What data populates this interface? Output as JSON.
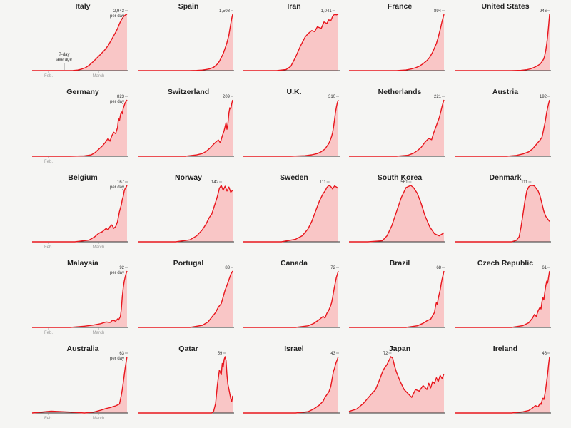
{
  "chart_data": [
    {
      "type": "area",
      "title": "Italy",
      "peak_label": "2,943",
      "unit_label": "per day",
      "annotation": "7-day average",
      "x_labels": [
        "Feb.",
        "March"
      ],
      "x": [
        0,
        15,
        30,
        38,
        43,
        48,
        52,
        56,
        60,
        64,
        68,
        72,
        76,
        80,
        84,
        88,
        90,
        92,
        94,
        96,
        98,
        100
      ],
      "values": [
        0,
        0,
        0,
        0,
        8,
        30,
        80,
        150,
        280,
        450,
        650,
        850,
        1050,
        1300,
        1650,
        2000,
        2200,
        2450,
        2650,
        2800,
        2900,
        2943
      ]
    },
    {
      "type": "area",
      "title": "Spain",
      "peak_label": "1,508",
      "x_labels": [],
      "x": [
        0,
        40,
        55,
        62,
        68,
        72,
        76,
        80,
        84,
        86,
        88,
        90,
        92,
        94,
        96,
        97,
        98,
        99,
        100
      ],
      "values": [
        0,
        0,
        0,
        5,
        15,
        30,
        50,
        90,
        180,
        250,
        350,
        450,
        600,
        750,
        950,
        1100,
        1250,
        1400,
        1508
      ]
    },
    {
      "type": "area",
      "title": "Iran",
      "peak_label": "1,041",
      "x_labels": [],
      "x": [
        0,
        35,
        45,
        50,
        55,
        60,
        65,
        68,
        72,
        75,
        78,
        82,
        85,
        88,
        90,
        92,
        94,
        96,
        98,
        100
      ],
      "values": [
        0,
        0,
        20,
        80,
        250,
        450,
        620,
        680,
        740,
        720,
        810,
        780,
        900,
        870,
        940,
        920,
        1000,
        1041,
        1030,
        1041
      ]
    },
    {
      "type": "area",
      "title": "France",
      "peak_label": "894",
      "x_labels": [],
      "x": [
        0,
        50,
        60,
        65,
        70,
        74,
        78,
        82,
        85,
        88,
        90,
        92,
        94,
        96,
        98,
        100
      ],
      "values": [
        0,
        0,
        10,
        25,
        45,
        70,
        110,
        160,
        210,
        290,
        360,
        430,
        530,
        650,
        780,
        894
      ]
    },
    {
      "type": "area",
      "title": "United States",
      "peak_label": "946",
      "x_labels": [],
      "x": [
        0,
        60,
        70,
        76,
        80,
        84,
        87,
        90,
        92,
        94,
        95,
        96,
        97,
        98,
        99,
        100
      ],
      "values": [
        0,
        0,
        5,
        15,
        30,
        55,
        80,
        110,
        150,
        200,
        260,
        340,
        450,
        580,
        760,
        946
      ]
    },
    {
      "type": "area",
      "title": "Germany",
      "peak_label": "823",
      "unit_label": "per day",
      "x_labels": [
        "Feb."
      ],
      "x": [
        0,
        40,
        55,
        62,
        66,
        70,
        74,
        77,
        80,
        82,
        84,
        86,
        88,
        90,
        91,
        92,
        93,
        94,
        95,
        96,
        97,
        98,
        99,
        100
      ],
      "values": [
        0,
        0,
        5,
        20,
        50,
        100,
        150,
        200,
        260,
        220,
        300,
        350,
        330,
        420,
        550,
        520,
        600,
        650,
        620,
        700,
        740,
        780,
        800,
        823
      ]
    },
    {
      "type": "area",
      "title": "Switzerland",
      "peak_label": "209",
      "x_labels": [],
      "x": [
        0,
        50,
        62,
        68,
        72,
        76,
        80,
        83,
        85,
        87,
        89,
        91,
        92,
        93,
        94,
        95,
        96,
        97,
        98,
        99,
        100
      ],
      "values": [
        0,
        0,
        5,
        10,
        18,
        30,
        45,
        55,
        60,
        50,
        75,
        95,
        110,
        125,
        100,
        120,
        160,
        180,
        175,
        195,
        209
      ]
    },
    {
      "type": "area",
      "title": "U.K.",
      "peak_label": "310",
      "x_labels": [],
      "x": [
        0,
        50,
        65,
        72,
        78,
        82,
        86,
        88,
        90,
        92,
        93,
        94,
        95,
        96,
        97,
        98,
        99,
        100
      ],
      "values": [
        0,
        0,
        3,
        8,
        15,
        25,
        40,
        55,
        70,
        95,
        110,
        130,
        160,
        200,
        240,
        270,
        295,
        310
      ]
    },
    {
      "type": "area",
      "title": "Netherlands",
      "peak_label": "221",
      "x_labels": [],
      "x": [
        0,
        50,
        62,
        68,
        72,
        76,
        80,
        84,
        87,
        89,
        91,
        93,
        95,
        96,
        97,
        98,
        99,
        100
      ],
      "values": [
        0,
        0,
        4,
        12,
        22,
        35,
        55,
        70,
        65,
        90,
        110,
        130,
        150,
        165,
        180,
        195,
        210,
        221
      ]
    },
    {
      "type": "area",
      "title": "Austria",
      "peak_label": "192",
      "x_labels": [],
      "x": [
        0,
        55,
        65,
        72,
        78,
        82,
        86,
        88,
        90,
        92,
        93,
        94,
        95,
        96,
        97,
        98,
        99,
        100
      ],
      "values": [
        0,
        0,
        3,
        8,
        15,
        25,
        40,
        48,
        55,
        65,
        80,
        95,
        110,
        130,
        150,
        165,
        180,
        192
      ]
    },
    {
      "type": "area",
      "title": "Belgium",
      "peak_label": "167",
      "unit_label": "per day",
      "x_labels": [
        "Feb.",
        "March"
      ],
      "x": [
        0,
        45,
        60,
        66,
        70,
        74,
        78,
        80,
        82,
        84,
        86,
        88,
        90,
        91,
        92,
        93,
        94,
        95,
        96,
        97,
        98,
        99,
        100
      ],
      "values": [
        0,
        0,
        5,
        15,
        25,
        30,
        40,
        35,
        45,
        50,
        40,
        45,
        60,
        75,
        90,
        100,
        110,
        125,
        135,
        150,
        158,
        162,
        167
      ]
    },
    {
      "type": "area",
      "title": "Norway",
      "peak_label": "142",
      "x_labels": [],
      "x": [
        0,
        40,
        55,
        62,
        68,
        72,
        75,
        78,
        80,
        82,
        84,
        86,
        88,
        90,
        92,
        94,
        96,
        98,
        100
      ],
      "values": [
        0,
        0,
        5,
        15,
        30,
        45,
        60,
        70,
        85,
        100,
        115,
        135,
        142,
        130,
        140,
        128,
        138,
        125,
        130
      ]
    },
    {
      "type": "area",
      "title": "Sweden",
      "peak_label": "111",
      "x_labels": [],
      "x": [
        0,
        40,
        55,
        62,
        68,
        72,
        76,
        80,
        84,
        86,
        88,
        90,
        92,
        94,
        96,
        98,
        100
      ],
      "values": [
        0,
        0,
        5,
        12,
        25,
        40,
        60,
        80,
        95,
        100,
        107,
        111,
        109,
        104,
        110,
        108,
        105
      ]
    },
    {
      "type": "area",
      "title": "South Korea",
      "peak_label": "561",
      "x_labels": [],
      "x": [
        0,
        20,
        35,
        40,
        45,
        50,
        55,
        60,
        65,
        68,
        72,
        76,
        80,
        85,
        90,
        95,
        100
      ],
      "values": [
        0,
        0,
        10,
        60,
        160,
        300,
        440,
        540,
        561,
        540,
        480,
        380,
        260,
        150,
        80,
        60,
        90
      ]
    },
    {
      "type": "area",
      "title": "Denmark",
      "peak_label": "111",
      "x_labels": [],
      "x": [
        0,
        50,
        60,
        65,
        68,
        70,
        72,
        74,
        76,
        78,
        80,
        82,
        84,
        86,
        88,
        90,
        92,
        94,
        96,
        98,
        100
      ],
      "values": [
        0,
        0,
        0,
        3,
        10,
        30,
        55,
        80,
        100,
        108,
        111,
        111,
        110,
        105,
        100,
        90,
        75,
        60,
        50,
        45,
        40
      ]
    },
    {
      "type": "area",
      "title": "Malaysia",
      "peak_label": "92",
      "unit_label": "per day",
      "x_labels": [
        "Feb.",
        "March"
      ],
      "x": [
        0,
        40,
        55,
        65,
        72,
        78,
        82,
        85,
        88,
        90,
        91,
        92,
        93,
        94,
        95,
        96,
        97,
        98,
        99,
        100
      ],
      "values": [
        0,
        0,
        2,
        4,
        6,
        9,
        8,
        12,
        10,
        14,
        12,
        15,
        18,
        30,
        50,
        65,
        75,
        82,
        88,
        92
      ]
    },
    {
      "type": "area",
      "title": "Portugal",
      "peak_label": "83",
      "x_labels": [],
      "x": [
        0,
        55,
        68,
        74,
        78,
        82,
        85,
        88,
        90,
        92,
        94,
        96,
        98,
        100
      ],
      "values": [
        0,
        0,
        3,
        8,
        15,
        22,
        30,
        35,
        45,
        55,
        62,
        70,
        78,
        83
      ]
    },
    {
      "type": "area",
      "title": "Canada",
      "peak_label": "72",
      "x_labels": [],
      "x": [
        0,
        55,
        68,
        74,
        80,
        84,
        86,
        88,
        90,
        92,
        93,
        94,
        95,
        96,
        97,
        98,
        99,
        100
      ],
      "values": [
        0,
        0,
        2,
        5,
        10,
        14,
        12,
        18,
        22,
        28,
        32,
        38,
        45,
        52,
        58,
        64,
        68,
        72
      ]
    },
    {
      "type": "area",
      "title": "Brazil",
      "peak_label": "68",
      "x_labels": [],
      "x": [
        0,
        60,
        72,
        78,
        82,
        86,
        88,
        90,
        91,
        92,
        93,
        94,
        95,
        96,
        97,
        98,
        99,
        100
      ],
      "values": [
        0,
        0,
        2,
        5,
        8,
        10,
        14,
        18,
        25,
        30,
        28,
        35,
        40,
        45,
        52,
        58,
        63,
        68
      ]
    },
    {
      "type": "area",
      "title": "Czech Republic",
      "peak_label": "61",
      "x_labels": [],
      "x": [
        0,
        60,
        72,
        78,
        82,
        84,
        86,
        88,
        90,
        91,
        92,
        93,
        94,
        95,
        96,
        97,
        98,
        99,
        100
      ],
      "values": [
        0,
        0,
        2,
        5,
        10,
        14,
        12,
        18,
        22,
        20,
        28,
        32,
        30,
        38,
        45,
        50,
        48,
        55,
        61
      ]
    },
    {
      "type": "area",
      "title": "Australia",
      "peak_label": "63",
      "unit_label": "per day",
      "x_labels": [
        "Feb.",
        "March"
      ],
      "x": [
        0,
        20,
        40,
        55,
        65,
        72,
        78,
        82,
        85,
        88,
        90,
        92,
        93,
        94,
        95,
        96,
        97,
        98,
        99,
        100
      ],
      "values": [
        0,
        2,
        1,
        0,
        1,
        3,
        5,
        6,
        7,
        8,
        9,
        10,
        15,
        20,
        26,
        34,
        42,
        50,
        57,
        63
      ]
    },
    {
      "type": "area",
      "title": "Qatar",
      "peak_label": "59",
      "x_labels": [],
      "x": [
        0,
        60,
        78,
        80,
        82,
        84,
        86,
        88,
        89,
        90,
        91,
        92,
        93,
        94,
        95,
        96,
        97,
        98,
        99,
        100
      ],
      "values": [
        0,
        0,
        0,
        2,
        10,
        30,
        45,
        40,
        52,
        48,
        56,
        59,
        55,
        40,
        30,
        25,
        20,
        15,
        12,
        18
      ]
    },
    {
      "type": "area",
      "title": "Israel",
      "peak_label": "43",
      "x_labels": [],
      "x": [
        0,
        55,
        68,
        74,
        80,
        84,
        86,
        88,
        90,
        92,
        93,
        94,
        95,
        96,
        97,
        98,
        99,
        100
      ],
      "values": [
        0,
        0,
        1,
        3,
        6,
        9,
        12,
        14,
        16,
        20,
        24,
        28,
        32,
        34,
        37,
        39,
        41,
        43
      ]
    },
    {
      "type": "area",
      "title": "Japan",
      "peak_label": "72",
      "x_labels": [],
      "x": [
        0,
        8,
        15,
        22,
        28,
        32,
        36,
        40,
        44,
        46,
        48,
        50,
        54,
        58,
        62,
        66,
        70,
        74,
        78,
        82,
        84,
        86,
        88,
        90,
        92,
        94,
        96,
        98,
        100
      ],
      "values": [
        2,
        5,
        12,
        22,
        30,
        42,
        55,
        62,
        72,
        70,
        60,
        52,
        40,
        30,
        25,
        20,
        30,
        28,
        35,
        30,
        38,
        32,
        40,
        38,
        45,
        40,
        48,
        44,
        50
      ]
    },
    {
      "type": "area",
      "title": "Ireland",
      "peak_label": "46",
      "x_labels": [],
      "x": [
        0,
        60,
        72,
        78,
        82,
        85,
        88,
        90,
        91,
        92,
        93,
        94,
        95,
        96,
        97,
        98,
        99,
        100
      ],
      "values": [
        0,
        0,
        1,
        2,
        4,
        6,
        5,
        8,
        7,
        10,
        12,
        11,
        15,
        20,
        26,
        32,
        40,
        46
      ]
    }
  ]
}
